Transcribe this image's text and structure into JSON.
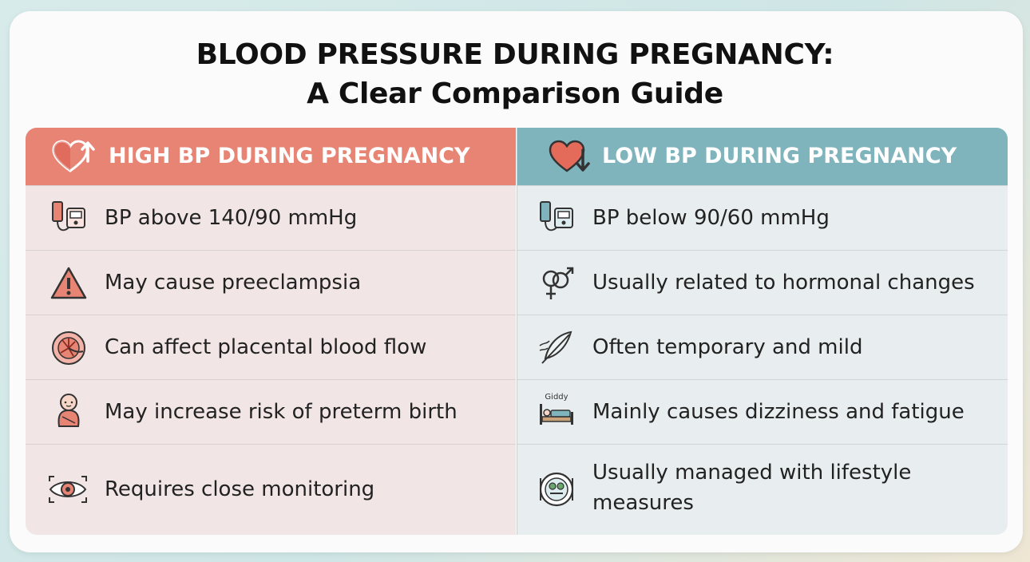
{
  "title": {
    "line1": "BLOOD PRESSURE DURING PREGNANCY:",
    "line2": "A Clear Comparison Guide"
  },
  "high": {
    "header": "HIGH BP DURING PREGNANCY",
    "header_icon": "heart-arrow-up-icon",
    "rows": [
      {
        "text": "BP above 140/90 mmHg",
        "icon": "bp-monitor-icon"
      },
      {
        "text": "May cause preeclampsia",
        "icon": "warning-triangle-icon"
      },
      {
        "text": "Can affect placental blood flow",
        "icon": "placenta-icon"
      },
      {
        "text": "May increase risk of preterm birth",
        "icon": "baby-icon"
      },
      {
        "text": "Requires close monitoring",
        "icon": "eye-icon"
      }
    ]
  },
  "low": {
    "header": "LOW BP DURING PREGNANCY",
    "header_icon": "heart-arrow-down-icon",
    "rows": [
      {
        "text": "BP below 90/60 mmHg",
        "icon": "bp-monitor-icon"
      },
      {
        "text": "Usually related to hormonal changes",
        "icon": "gender-symbols-icon"
      },
      {
        "text": "Often temporary and mild",
        "icon": "feather-icon"
      },
      {
        "text": "Mainly causes dizziness and fatigue",
        "icon": "giddy-bed-icon",
        "icon_label": "Giddy"
      },
      {
        "text_line1": "Usually managed with lifestyle",
        "text_line2": "measures",
        "icon": "healthy-plate-icon"
      }
    ]
  },
  "colors": {
    "high_header": "#e88474",
    "low_header": "#7fb4bd",
    "high_bg": "#f1e6e5",
    "low_bg": "#e8eeef"
  }
}
